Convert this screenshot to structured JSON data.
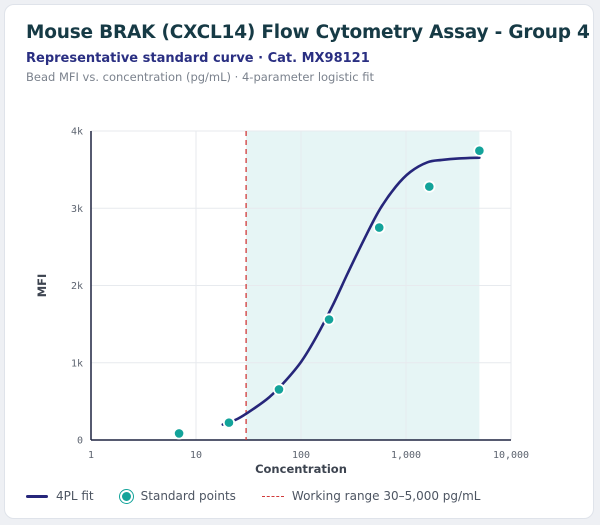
{
  "header": {
    "title": "Mouse BRAK (CXCL14) Flow Cytometry Assay - Group 4",
    "subtitle": "Representative standard curve · Cat. MX98121",
    "caption": "Bead MFI vs. concentration (pg/mL) · 4-parameter logistic fit"
  },
  "legend": {
    "fit_label": "4PL fit",
    "points_label": "Standard points",
    "range_label": "Working range 30–5,000 pg/mL"
  },
  "colors": {
    "fit": "#26267a",
    "points": "#13a39a",
    "lloq_line": "#d13a3a",
    "range_fill": "#e6f5f5"
  },
  "chart_data": {
    "type": "scatter",
    "xlabel": "Concentration",
    "ylabel": "MFI",
    "x_scale": "log",
    "xlim": [
      1,
      10000
    ],
    "ylim": [
      0,
      4000
    ],
    "x_ticks": [
      1,
      10,
      100,
      1000,
      10000
    ],
    "x_tick_labels": [
      "1",
      "10",
      "100",
      "1,000",
      "10,000"
    ],
    "y_ticks": [
      0,
      1000,
      2000,
      3000,
      4000
    ],
    "y_tick_labels": [
      "0",
      "1k",
      "2k",
      "3k",
      "4k"
    ],
    "grid": true,
    "working_range": [
      30,
      5000
    ],
    "series": [
      {
        "name": "Standard points",
        "kind": "points",
        "x": [
          6.9,
          20.6,
          61.7,
          185,
          556,
          1667,
          5000
        ],
        "y": [
          85,
          225,
          655,
          1560,
          2750,
          3280,
          3745
        ]
      },
      {
        "name": "4PL fit",
        "kind": "curve",
        "x": [
          18,
          25,
          35,
          50,
          70,
          100,
          140,
          200,
          280,
          400,
          560,
          800,
          1100,
          1600,
          2200,
          3200,
          5000
        ],
        "y": [
          200,
          275,
          400,
          555,
          755,
          1010,
          1335,
          1740,
          2165,
          2600,
          2980,
          3280,
          3470,
          3595,
          3625,
          3645,
          3655
        ]
      }
    ]
  }
}
